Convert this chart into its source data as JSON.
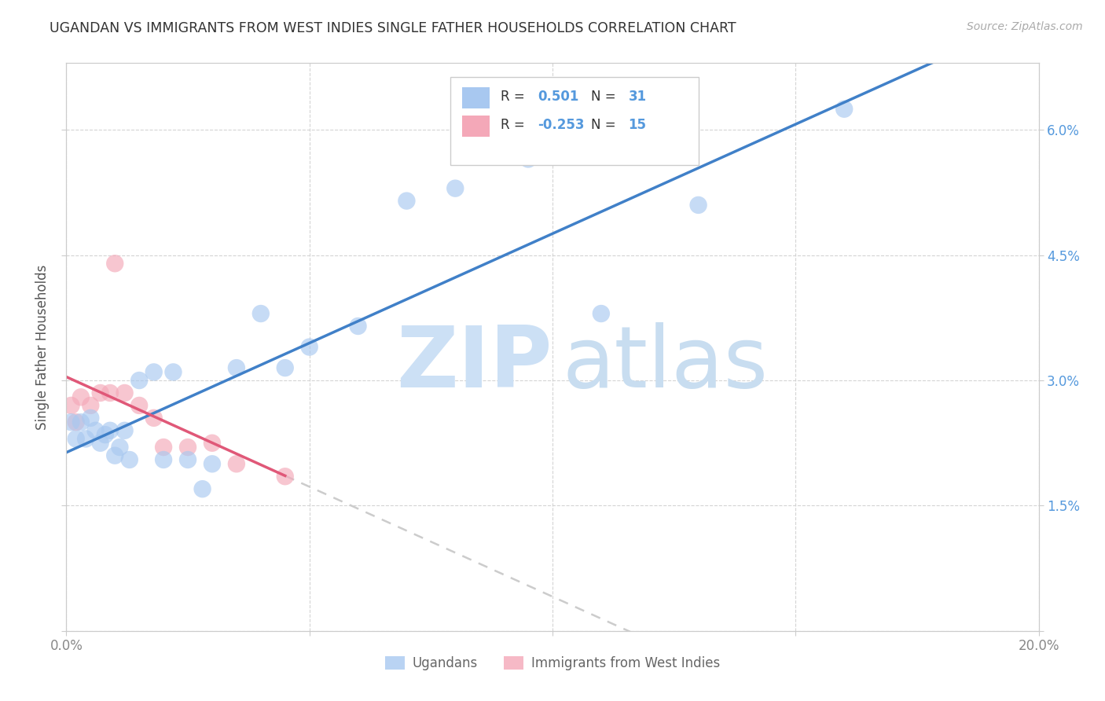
{
  "title": "UGANDAN VS IMMIGRANTS FROM WEST INDIES SINGLE FATHER HOUSEHOLDS CORRELATION CHART",
  "source": "Source: ZipAtlas.com",
  "ylabel": "Single Father Households",
  "xlim": [
    0.0,
    0.2
  ],
  "ylim": [
    0.0,
    0.068
  ],
  "r_ugandan": 0.501,
  "n_ugandan": 31,
  "r_west_indies": -0.253,
  "n_west_indies": 15,
  "ugandan_color": "#a8c8f0",
  "west_indies_color": "#f4a8b8",
  "ugandan_line_color": "#4080c8",
  "west_indies_line_color": "#e05878",
  "ugandan_x": [
    0.001,
    0.002,
    0.003,
    0.004,
    0.005,
    0.006,
    0.007,
    0.008,
    0.009,
    0.01,
    0.011,
    0.012,
    0.013,
    0.015,
    0.018,
    0.02,
    0.022,
    0.025,
    0.028,
    0.03,
    0.035,
    0.04,
    0.045,
    0.05,
    0.06,
    0.07,
    0.08,
    0.095,
    0.11,
    0.13,
    0.16
  ],
  "ugandan_y": [
    0.025,
    0.023,
    0.025,
    0.023,
    0.0255,
    0.024,
    0.0225,
    0.0235,
    0.024,
    0.021,
    0.022,
    0.024,
    0.0205,
    0.03,
    0.031,
    0.0205,
    0.031,
    0.0205,
    0.017,
    0.02,
    0.0315,
    0.038,
    0.0315,
    0.034,
    0.0365,
    0.0515,
    0.053,
    0.0565,
    0.038,
    0.051,
    0.0625
  ],
  "west_indies_x": [
    0.001,
    0.002,
    0.003,
    0.005,
    0.007,
    0.009,
    0.01,
    0.012,
    0.015,
    0.018,
    0.02,
    0.025,
    0.03,
    0.035,
    0.045
  ],
  "west_indies_y": [
    0.027,
    0.025,
    0.028,
    0.027,
    0.0285,
    0.0285,
    0.044,
    0.0285,
    0.027,
    0.0255,
    0.022,
    0.022,
    0.0225,
    0.02,
    0.0185
  ]
}
